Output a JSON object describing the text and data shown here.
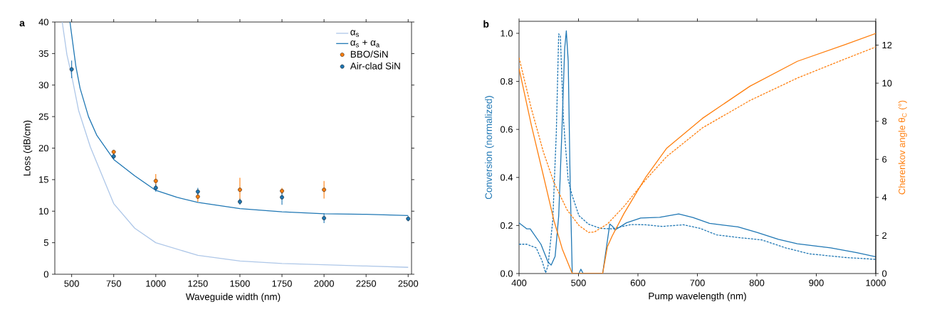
{
  "chart_data": [
    {
      "type": "scatter",
      "title": "a",
      "xlabel": "Waveguide width (nm)",
      "ylabel": "Loss (dB/cm)",
      "xlim": [
        400,
        2520
      ],
      "ylim": [
        0,
        40
      ],
      "xticks": [
        500,
        750,
        1000,
        1250,
        1500,
        1750,
        2000,
        2250,
        2500
      ],
      "yticks": [
        0,
        5,
        10,
        15,
        20,
        25,
        30,
        35,
        40
      ],
      "legend": "top right",
      "series": [
        {
          "name": "α$_{s}$",
          "type": "line",
          "marker": "none",
          "color": "#aec7e8",
          "x": [
            444,
            472,
            500,
            541,
            611,
            750,
            875,
            1000,
            1250,
            1500,
            1750,
            2000,
            2250,
            2500
          ],
          "values": [
            40,
            34.8,
            31.5,
            26,
            20.2,
            11.2,
            7.3,
            5.0,
            3.0,
            2.1,
            1.7,
            1.5,
            1.3,
            1.1
          ]
        },
        {
          "name": "α$_{s}$ + α$_{a}$",
          "type": "line",
          "marker": "none",
          "color": "#1f77b4",
          "x": [
            490,
            525,
            550,
            600,
            650,
            750,
            875,
            1000,
            1125,
            1250,
            1500,
            1750,
            2000,
            2250,
            2500
          ],
          "values": [
            40,
            33,
            29.5,
            25,
            22,
            18.2,
            15.6,
            13.3,
            12.2,
            11.4,
            10.4,
            9.9,
            9.6,
            9.5,
            9.3
          ]
        },
        {
          "name": "BBO/SiN",
          "marker": "circle",
          "color": "#ff7f0e",
          "x": [
            750,
            1000,
            1250,
            1500,
            1750,
            2000
          ],
          "values": [
            19.4,
            14.8,
            12.3,
            13.4,
            13.2,
            13.4
          ],
          "errors": [
            0.3,
            1.1,
            0.8,
            1.9,
            0.5,
            1.4
          ]
        },
        {
          "name": "Air-clad SiN",
          "marker": "circle",
          "color": "#1f77b4",
          "x": [
            500,
            750,
            1000,
            1250,
            1500,
            1750,
            2000,
            2500
          ],
          "values": [
            32.5,
            18.7,
            13.7,
            13.1,
            11.5,
            12.2,
            8.9,
            8.8
          ],
          "errors": [
            1.4,
            0.5,
            0.6,
            0.6,
            0.5,
            1.2,
            0.8,
            0.4
          ]
        }
      ]
    },
    {
      "type": "line",
      "title": "b",
      "xlabel": "Pump wavelength (nm)",
      "ylabel": "Conversion (normalized)",
      "y2label": "Cherenkov angle θ$_{C}$ (°)",
      "xlim": [
        400,
        1000
      ],
      "ylim": [
        0,
        1.05
      ],
      "y2lim": [
        0,
        13.25
      ],
      "xticks": [
        400,
        500,
        600,
        700,
        800,
        900,
        1000
      ],
      "yticks": [
        {
          "value": 0,
          "label": "0.0"
        },
        0.2,
        0.4,
        0.6,
        0.8,
        {
          "value": 1,
          "label": "1.0"
        }
      ],
      "y2ticks": [
        0,
        2,
        4,
        6,
        8,
        10,
        12
      ],
      "series": [
        {
          "color": "#1f77b4",
          "line_style": "solid",
          "x": [
            400,
            412.8,
            418.8,
            436.8,
            448.7,
            454,
            460.7,
            466.7,
            472,
            476.7,
            479.5,
            482.7,
            485.9,
            489.5,
            500.7,
            503.9,
            507.9,
            540.6,
            546.6,
            552.6,
            557.4,
            561.4,
            580.6,
            604.6,
            636.5,
            668.5,
            692.4,
            720.4,
            768.4,
            800.3,
            836.3,
            868.2,
            924.2,
            968.1,
            1000
          ],
          "values": [
            0.211,
            0.186,
            0.186,
            0.122,
            0.048,
            0.035,
            0.072,
            0.24,
            0.587,
            0.934,
            1.01,
            0.884,
            0.389,
            0,
            0,
            0.018,
            0,
            0,
            0.102,
            0.206,
            0.196,
            0.181,
            0.211,
            0.231,
            0.234,
            0.248,
            0.233,
            0.209,
            0.194,
            0.171,
            0.142,
            0.124,
            0.107,
            0.087,
            0.07
          ]
        },
        {
          "color": "#1f77b4",
          "line_style": "dashed",
          "x": [
            400,
            412.8,
            428.8,
            438.8,
            444.7,
            448.7,
            456.7,
            462.7,
            466.7,
            469.5,
            474.7,
            482.7,
            488.7,
            500.7,
            516.7,
            536.6,
            556.6,
            588.6,
            612.5,
            640.5,
            676.5,
            704.4,
            732.4,
            768.4,
            808.3,
            848.3,
            888.2,
            948.1,
            1000
          ],
          "values": [
            0.122,
            0.122,
            0.107,
            0.052,
            0.003,
            0.033,
            0.221,
            0.587,
            0.998,
            0.988,
            0.637,
            0.389,
            0.33,
            0.241,
            0.206,
            0.188,
            0.186,
            0.204,
            0.203,
            0.196,
            0.203,
            0.188,
            0.161,
            0.15,
            0.14,
            0.107,
            0.082,
            0.067,
            0.059
          ]
        },
        {
          "color": "#ff7f0e",
          "line_style": "solid",
          "axis": "y2",
          "x": [
            400,
            420.8,
            440.8,
            458.7,
            472.7,
            489.5,
            540.6,
            548.6,
            556.6,
            576.6,
            612.5,
            648.5,
            708.4,
            788.3,
            868.2,
            948.1,
            1000
          ],
          "values": [
            10.77,
            7.78,
            5.16,
            2.78,
            1.29,
            0,
            0,
            1.41,
            1.97,
            3.16,
            5.03,
            6.59,
            8.15,
            9.84,
            11.15,
            12.02,
            12.61
          ]
        },
        {
          "color": "#ff7f0e",
          "line_style": "dashed",
          "axis": "y2",
          "x": [
            400,
            420.8,
            440.8,
            458.7,
            480.7,
            500.7,
            516.7,
            526.6,
            548.6,
            576.6,
            612.5,
            648.5,
            708.4,
            788.3,
            868.2,
            948.1,
            1000
          ],
          "values": [
            11.34,
            8.65,
            6.4,
            4.78,
            3.35,
            2.53,
            2.16,
            2.18,
            2.6,
            3.53,
            4.91,
            6.15,
            7.65,
            9.09,
            10.27,
            11.27,
            11.9
          ]
        }
      ]
    }
  ]
}
